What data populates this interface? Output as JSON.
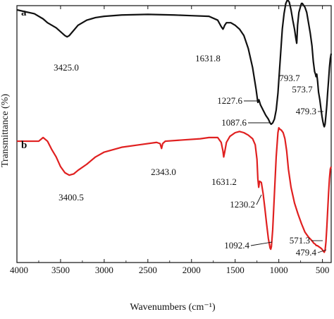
{
  "chart_data": {
    "type": "line",
    "xlabel": "Wavenumbers (cm⁻¹)",
    "ylabel": "Transmittance (%)",
    "xlim": [
      4000,
      400
    ],
    "x_reversed": true,
    "xticks": [
      4000,
      3500,
      3000,
      2500,
      2000,
      1500,
      1000,
      500
    ],
    "yticks_shown": false,
    "grid": false,
    "series": [
      {
        "name": "a",
        "color": "#111111",
        "x": [
          4000,
          3800,
          3700,
          3650,
          3600,
          3550,
          3500,
          3450,
          3425,
          3400,
          3350,
          3300,
          3200,
          3100,
          3000,
          2800,
          2500,
          2200,
          2000,
          1800,
          1700,
          1660,
          1640,
          1631.8,
          1620,
          1600,
          1550,
          1500,
          1450,
          1400,
          1350,
          1300,
          1260,
          1240,
          1227.6,
          1210,
          1180,
          1150,
          1120,
          1100,
          1087.6,
          1070,
          1050,
          1030,
          1010,
          1000,
          980,
          960,
          940,
          920,
          900,
          880,
          860,
          840,
          820,
          805,
          795,
          793.7,
          785,
          770,
          750,
          740,
          730,
          720,
          710,
          700,
          690,
          680,
          660,
          640,
          620,
          605,
          590,
          580,
          573.7,
          565,
          555,
          545,
          530,
          515,
          505,
          495,
          485,
          479.3,
          470,
          460,
          450,
          440,
          430,
          420,
          410,
          400
        ],
        "y": [
          1.0,
          0.97,
          0.93,
          0.9,
          0.88,
          0.86,
          0.83,
          0.8,
          0.79,
          0.8,
          0.84,
          0.88,
          0.92,
          0.94,
          0.95,
          0.96,
          0.965,
          0.96,
          0.955,
          0.95,
          0.92,
          0.87,
          0.85,
          0.86,
          0.88,
          0.9,
          0.9,
          0.88,
          0.85,
          0.8,
          0.7,
          0.55,
          0.38,
          0.28,
          0.3,
          0.26,
          0.22,
          0.18,
          0.15,
          0.12,
          0.11,
          0.12,
          0.15,
          0.22,
          0.35,
          0.45,
          0.65,
          0.85,
          0.97,
          1.05,
          1.08,
          1.06,
          1.0,
          0.92,
          0.85,
          0.78,
          0.74,
          0.75,
          0.88,
          0.98,
          1.03,
          1.05,
          1.05,
          1.04,
          1.03,
          1.02,
          1.0,
          0.98,
          0.9,
          0.82,
          0.72,
          0.6,
          0.52,
          0.5,
          0.48,
          0.5,
          0.44,
          0.36,
          0.3,
          0.22,
          0.17,
          0.13,
          0.1,
          0.09,
          0.11,
          0.18,
          0.26,
          0.36,
          0.45,
          0.55,
          0.62,
          0.66
        ]
      },
      {
        "name": "b",
        "color": "#e02020",
        "x": [
          4000,
          3850,
          3750,
          3700,
          3650,
          3600,
          3550,
          3500,
          3450,
          3400.5,
          3350,
          3300,
          3200,
          3100,
          3000,
          2800,
          2600,
          2400,
          2360,
          2343.0,
          2330,
          2300,
          2100,
          1900,
          1800,
          1700,
          1660,
          1640,
          1631.2,
          1620,
          1600,
          1560,
          1500,
          1450,
          1400,
          1350,
          1300,
          1270,
          1250,
          1240,
          1230.2,
          1220,
          1200,
          1180,
          1160,
          1140,
          1120,
          1100,
          1092.4,
          1085,
          1070,
          1050,
          1030,
          1010,
          1000,
          990,
          970,
          950,
          930,
          910,
          890,
          860,
          820,
          780,
          740,
          700,
          660,
          620,
          600,
          580,
          571.3,
          560,
          540,
          520,
          505,
          495,
          485,
          479.4,
          470,
          460,
          450,
          440,
          430,
          420,
          410,
          400
        ],
        "y": [
          0.93,
          0.93,
          0.93,
          0.96,
          0.93,
          0.86,
          0.8,
          0.72,
          0.67,
          0.65,
          0.66,
          0.69,
          0.74,
          0.8,
          0.84,
          0.88,
          0.9,
          0.92,
          0.91,
          0.87,
          0.91,
          0.93,
          0.94,
          0.95,
          0.96,
          0.96,
          0.92,
          0.85,
          0.8,
          0.84,
          0.92,
          0.97,
          1.0,
          1.01,
          1.0,
          0.98,
          0.95,
          0.9,
          0.78,
          0.62,
          0.55,
          0.6,
          0.59,
          0.5,
          0.38,
          0.25,
          0.13,
          0.05,
          0.04,
          0.06,
          0.2,
          0.5,
          0.8,
          1.0,
          1.04,
          1.03,
          1.02,
          1.0,
          0.95,
          0.85,
          0.7,
          0.55,
          0.42,
          0.33,
          0.25,
          0.18,
          0.14,
          0.11,
          0.09,
          0.08,
          0.07,
          0.07,
          0.06,
          0.05,
          0.04,
          0.03,
          0.02,
          0.015,
          0.03,
          0.1,
          0.22,
          0.36,
          0.5,
          0.62,
          0.7,
          0.72
        ]
      }
    ],
    "panel_labels": [
      "a",
      "b"
    ],
    "annotations": [
      {
        "series": 0,
        "peak": 3425.0,
        "text": "3425.0"
      },
      {
        "series": 0,
        "peak": 1631.8,
        "text": "1631.8"
      },
      {
        "series": 0,
        "peak": 1227.6,
        "text": "1227.6"
      },
      {
        "series": 0,
        "peak": 1087.6,
        "text": "1087.6"
      },
      {
        "series": 0,
        "peak": 793.7,
        "text": "793.7"
      },
      {
        "series": 0,
        "peak": 573.7,
        "text": "573.7"
      },
      {
        "series": 0,
        "peak": 479.3,
        "text": "479.3"
      },
      {
        "series": 1,
        "peak": 3400.5,
        "text": "3400.5"
      },
      {
        "series": 1,
        "peak": 2343.0,
        "text": "2343.0"
      },
      {
        "series": 1,
        "peak": 1631.2,
        "text": "1631.2"
      },
      {
        "series": 1,
        "peak": 1230.2,
        "text": "1230.2"
      },
      {
        "series": 1,
        "peak": 1092.4,
        "text": "1092.4"
      },
      {
        "series": 1,
        "peak": 571.3,
        "text": "571.3"
      },
      {
        "series": 1,
        "peak": 479.4,
        "text": "479.4"
      }
    ]
  }
}
